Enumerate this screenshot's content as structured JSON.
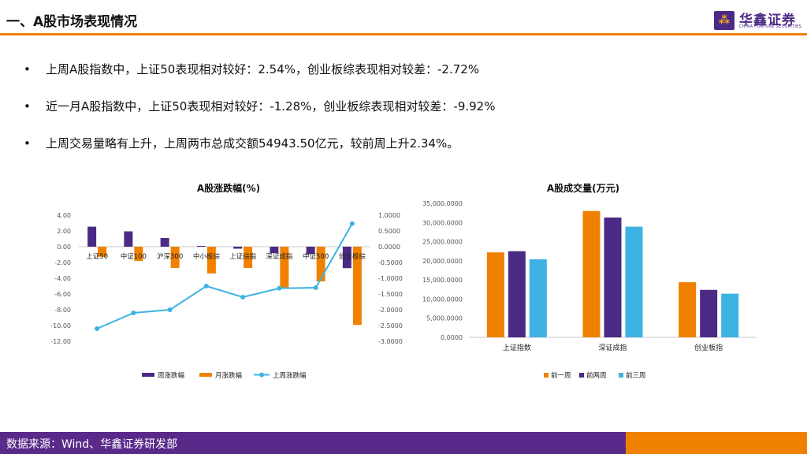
{
  "header": {
    "title": "一、A股市场表现情况"
  },
  "logo": {
    "cn": "华鑫证券",
    "en": "CHINA FORTUNE SECURITIES",
    "mark": "⁂"
  },
  "bullets": [
    "上周A股指数中，上证50表现相对较好：2.54%，创业板综表现相对较差：-2.72%",
    "近一月A股指数中，上证50表现相对较好：-1.28%，创业板综表现相对较差：-9.92%",
    "上周交易量略有上升，上周两市总成交额54943.50亿元，较前周上升2.34%。"
  ],
  "bullet_symbol": "•",
  "colors": {
    "purple": "#4b2a85",
    "orange": "#f08100",
    "lightblue": "#3db3e3",
    "footer_purple": "#5a2a8a"
  },
  "chart_data": [
    {
      "type": "bar",
      "title": "A股涨跌幅(%)",
      "categories": [
        "上证50",
        "中证100",
        "沪深300",
        "中小板综",
        "上证综指",
        "深证成指",
        "中证500",
        "创业板综"
      ],
      "series": [
        {
          "name": "周涨跌幅",
          "axis": "left",
          "values": [
            2.54,
            1.95,
            1.1,
            0.1,
            -0.25,
            -0.8,
            -0.95,
            -2.72
          ]
        },
        {
          "name": "月涨跌幅",
          "axis": "left",
          "values": [
            -1.28,
            -1.8,
            -2.7,
            -3.4,
            -2.7,
            -5.2,
            -4.4,
            -9.92
          ]
        },
        {
          "name": "上周涨跌幅",
          "type": "line",
          "axis": "right",
          "values": [
            -2.6,
            -2.1,
            -2.0,
            -1.25,
            -1.6,
            -1.32,
            -1.3,
            0.73
          ]
        }
      ],
      "left_axis": {
        "ylim": [
          -12,
          4
        ],
        "ticks": [
          "4.00",
          "2.00",
          "0.00",
          "-2.00",
          "-4.00",
          "-6.00",
          "-8.00",
          "-10.00",
          "-12.00"
        ]
      },
      "right_axis": {
        "ylim": [
          -3,
          1
        ],
        "ticks": [
          "1.0000",
          "0.5000",
          "0.0000",
          "-0.5000",
          "-1.0000",
          "-1.5000",
          "-2.0000",
          "-2.5000",
          "-3.0000"
        ]
      },
      "grid": false,
      "legend": "bottom"
    },
    {
      "type": "bar",
      "title": "A股成交量(万元)",
      "categories": [
        "上证指数",
        "深证成指",
        "创业板指"
      ],
      "series": [
        {
          "name": "前一周",
          "values": [
            22200,
            33000,
            14400
          ]
        },
        {
          "name": "前两周",
          "values": [
            22500,
            31300,
            12400
          ]
        },
        {
          "name": "前三周",
          "values": [
            20400,
            28900,
            11400
          ]
        }
      ],
      "ylim": [
        0,
        35000
      ],
      "ticks": [
        "35,000.0000",
        "30,000.0000",
        "25,000.0000",
        "20,000.0000",
        "15,000.0000",
        "10,000.0000",
        "5,000.0000",
        "0.0000"
      ],
      "grid": false,
      "legend": "bottom"
    }
  ],
  "footer": {
    "source": "数据来源：Wind、华鑫证券研发部"
  }
}
